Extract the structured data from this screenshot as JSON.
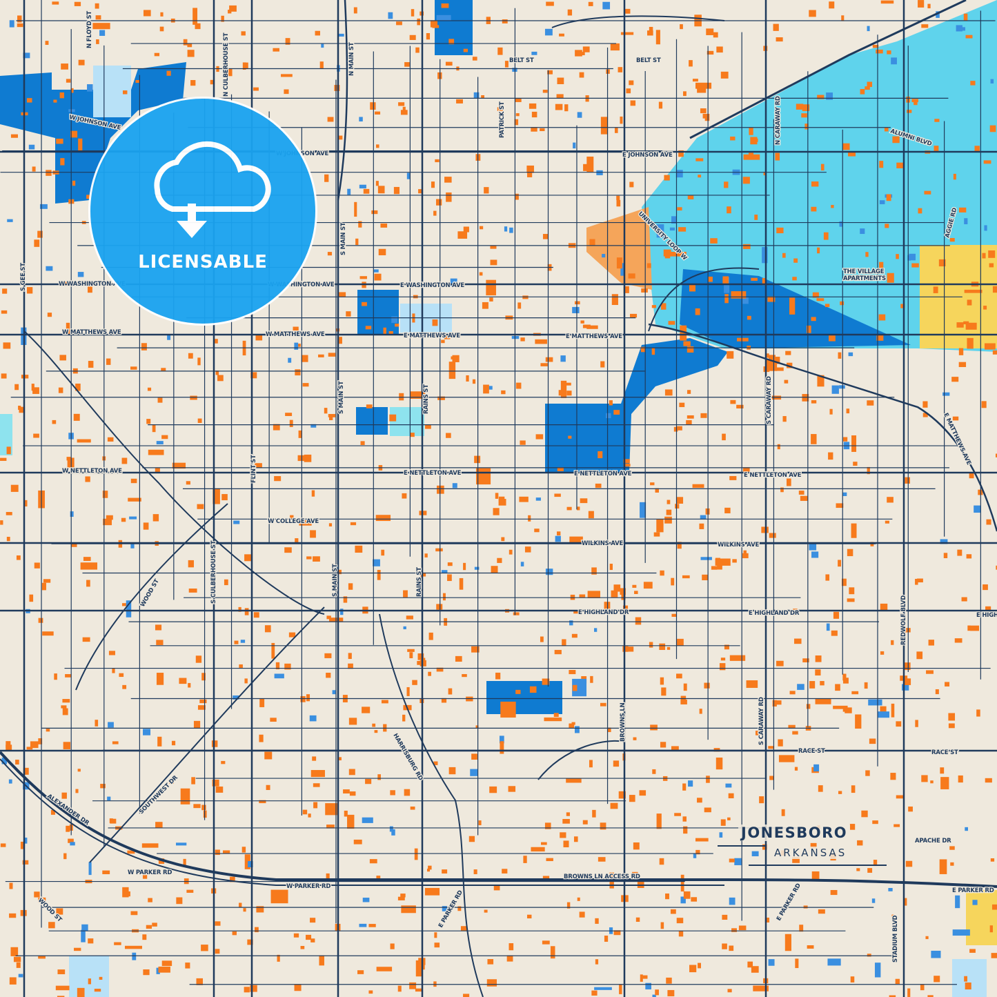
{
  "map": {
    "city": "JONESBORO",
    "state": "ARKANSAS",
    "colors": {
      "background": "#efe9dd",
      "road": "#1f3a5c",
      "building": "#f77a1c",
      "water": "#0f7bd1",
      "park": "#8ee3ee",
      "campus": "#5fd3ec",
      "light_water": "#b8e1f7",
      "industrial": "#f6d55c",
      "commercial": "#f5a55a"
    },
    "road_labels": [
      "N FLOYD ST",
      "N CULBERHOUSE ST",
      "N MAIN ST",
      "BELT ST",
      "BELT ST",
      "PATRICK ST",
      "W JOHNSON AVE",
      "W JOHNSON AVE",
      "E JOHNSON AVE",
      "N CARAWAY RD",
      "ALUMNI BLVD",
      "UNIVERSITY LOOP W",
      "AGGIE RD",
      "THE VILLAGE",
      "APARTMENTS",
      "S MAIN ST",
      "W WASHINGTON AVE",
      "W WASHINGTON AVE",
      "E WASHINGTON AVE",
      "S GEE ST",
      "W MATTHEWS AVE",
      "W MATTHEWS AVE",
      "E MATTHEWS AVE",
      "E MATTHEWS AVE",
      "S MAIN ST",
      "RAINS ST",
      "S CARAWAY RD",
      "E MATTHEWS AVE",
      "W NETTLETON AVE",
      "E NETTLETON AVE",
      "E NETTLETON AVE",
      "E NETTLETON AVE",
      "FLINT ST",
      "W COLLEGE AVE",
      "WILKINS AVE",
      "WILKINS AVE",
      "S CULBERHOUSE ST",
      "WOOD ST",
      "S MAIN ST",
      "RAINS ST",
      "E HIGHLAND DR",
      "E HIGHLAND DR",
      "E HIGH",
      "REDWOLF BLVD",
      "BROWNS LN",
      "S CARAWAY RD",
      "RACE ST",
      "RACE ST",
      "HARRISBURG RD",
      "SOUTHWEST DR",
      "ALEXANDER DR",
      "W PARKER RD",
      "W PARKER RD",
      "BROWNS LN ACCESS RD",
      "APACHE DR",
      "E PARKER RD",
      "E PARKER RD",
      "E PARKER RD",
      "STADIUM BLVD",
      "WOOD ST"
    ]
  },
  "badge": {
    "label": "LICENSABLE",
    "icon": "cloud-download-icon"
  },
  "watermark": {
    "icon": "heb-street-sketches-logo"
  }
}
